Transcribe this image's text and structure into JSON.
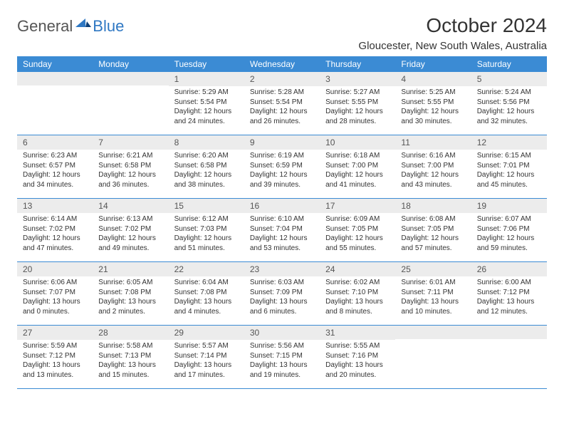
{
  "logo": {
    "general": "General",
    "blue": "Blue"
  },
  "header": {
    "month_title": "October 2024",
    "location": "Gloucester, New South Wales, Australia"
  },
  "colors": {
    "header_bar": "#3b8bd4",
    "header_text": "#ffffff",
    "daynum_bg": "#ececec",
    "border": "#3b8bd4",
    "text": "#333333",
    "logo_gray": "#555555",
    "logo_blue": "#2f78c3",
    "background": "#ffffff"
  },
  "daysOfWeek": [
    "Sunday",
    "Monday",
    "Tuesday",
    "Wednesday",
    "Thursday",
    "Friday",
    "Saturday"
  ],
  "weeks": [
    [
      null,
      null,
      {
        "n": "1",
        "sr": "5:29 AM",
        "ss": "5:54 PM",
        "dl": "12 hours and 24 minutes."
      },
      {
        "n": "2",
        "sr": "5:28 AM",
        "ss": "5:54 PM",
        "dl": "12 hours and 26 minutes."
      },
      {
        "n": "3",
        "sr": "5:27 AM",
        "ss": "5:55 PM",
        "dl": "12 hours and 28 minutes."
      },
      {
        "n": "4",
        "sr": "5:25 AM",
        "ss": "5:55 PM",
        "dl": "12 hours and 30 minutes."
      },
      {
        "n": "5",
        "sr": "5:24 AM",
        "ss": "5:56 PM",
        "dl": "12 hours and 32 minutes."
      }
    ],
    [
      {
        "n": "6",
        "sr": "6:23 AM",
        "ss": "6:57 PM",
        "dl": "12 hours and 34 minutes."
      },
      {
        "n": "7",
        "sr": "6:21 AM",
        "ss": "6:58 PM",
        "dl": "12 hours and 36 minutes."
      },
      {
        "n": "8",
        "sr": "6:20 AM",
        "ss": "6:58 PM",
        "dl": "12 hours and 38 minutes."
      },
      {
        "n": "9",
        "sr": "6:19 AM",
        "ss": "6:59 PM",
        "dl": "12 hours and 39 minutes."
      },
      {
        "n": "10",
        "sr": "6:18 AM",
        "ss": "7:00 PM",
        "dl": "12 hours and 41 minutes."
      },
      {
        "n": "11",
        "sr": "6:16 AM",
        "ss": "7:00 PM",
        "dl": "12 hours and 43 minutes."
      },
      {
        "n": "12",
        "sr": "6:15 AM",
        "ss": "7:01 PM",
        "dl": "12 hours and 45 minutes."
      }
    ],
    [
      {
        "n": "13",
        "sr": "6:14 AM",
        "ss": "7:02 PM",
        "dl": "12 hours and 47 minutes."
      },
      {
        "n": "14",
        "sr": "6:13 AM",
        "ss": "7:02 PM",
        "dl": "12 hours and 49 minutes."
      },
      {
        "n": "15",
        "sr": "6:12 AM",
        "ss": "7:03 PM",
        "dl": "12 hours and 51 minutes."
      },
      {
        "n": "16",
        "sr": "6:10 AM",
        "ss": "7:04 PM",
        "dl": "12 hours and 53 minutes."
      },
      {
        "n": "17",
        "sr": "6:09 AM",
        "ss": "7:05 PM",
        "dl": "12 hours and 55 minutes."
      },
      {
        "n": "18",
        "sr": "6:08 AM",
        "ss": "7:05 PM",
        "dl": "12 hours and 57 minutes."
      },
      {
        "n": "19",
        "sr": "6:07 AM",
        "ss": "7:06 PM",
        "dl": "12 hours and 59 minutes."
      }
    ],
    [
      {
        "n": "20",
        "sr": "6:06 AM",
        "ss": "7:07 PM",
        "dl": "13 hours and 0 minutes."
      },
      {
        "n": "21",
        "sr": "6:05 AM",
        "ss": "7:08 PM",
        "dl": "13 hours and 2 minutes."
      },
      {
        "n": "22",
        "sr": "6:04 AM",
        "ss": "7:08 PM",
        "dl": "13 hours and 4 minutes."
      },
      {
        "n": "23",
        "sr": "6:03 AM",
        "ss": "7:09 PM",
        "dl": "13 hours and 6 minutes."
      },
      {
        "n": "24",
        "sr": "6:02 AM",
        "ss": "7:10 PM",
        "dl": "13 hours and 8 minutes."
      },
      {
        "n": "25",
        "sr": "6:01 AM",
        "ss": "7:11 PM",
        "dl": "13 hours and 10 minutes."
      },
      {
        "n": "26",
        "sr": "6:00 AM",
        "ss": "7:12 PM",
        "dl": "13 hours and 12 minutes."
      }
    ],
    [
      {
        "n": "27",
        "sr": "5:59 AM",
        "ss": "7:12 PM",
        "dl": "13 hours and 13 minutes."
      },
      {
        "n": "28",
        "sr": "5:58 AM",
        "ss": "7:13 PM",
        "dl": "13 hours and 15 minutes."
      },
      {
        "n": "29",
        "sr": "5:57 AM",
        "ss": "7:14 PM",
        "dl": "13 hours and 17 minutes."
      },
      {
        "n": "30",
        "sr": "5:56 AM",
        "ss": "7:15 PM",
        "dl": "13 hours and 19 minutes."
      },
      {
        "n": "31",
        "sr": "5:55 AM",
        "ss": "7:16 PM",
        "dl": "13 hours and 20 minutes."
      },
      null,
      null
    ]
  ],
  "labels": {
    "sunrise": "Sunrise:",
    "sunset": "Sunset:",
    "daylight": "Daylight:"
  }
}
